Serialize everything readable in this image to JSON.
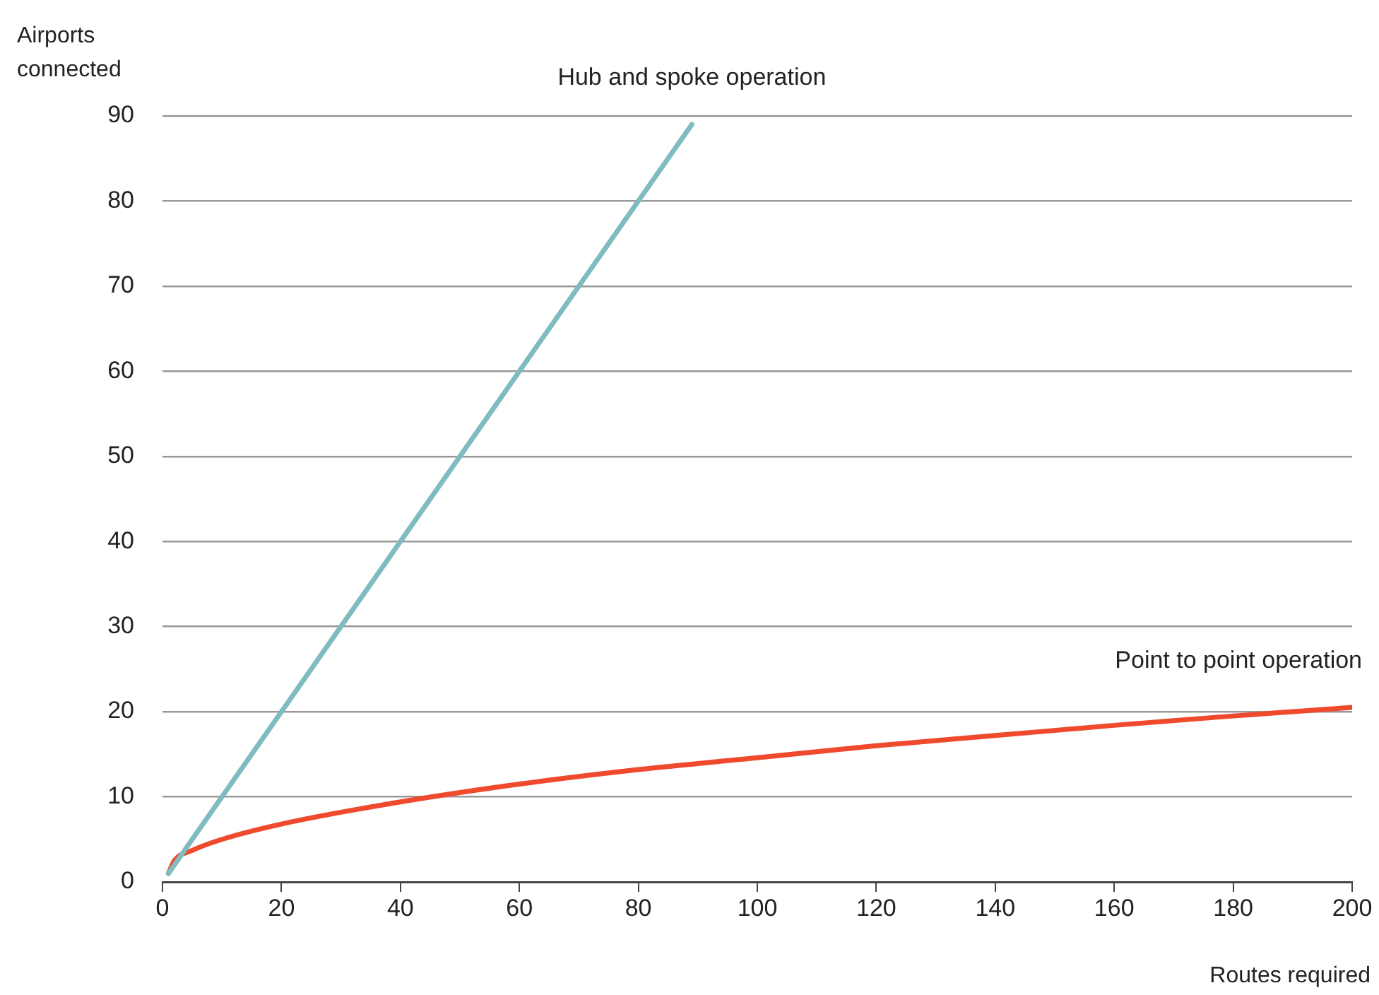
{
  "chart_data": {
    "type": "line",
    "xlabel": "Routes required",
    "ylabel": "Airports connected",
    "xlim": [
      0,
      200
    ],
    "xticks": [
      0,
      20,
      40,
      60,
      80,
      100,
      120,
      140,
      160,
      180,
      200
    ],
    "ylim": [
      0,
      90
    ],
    "yticks": [
      0,
      10,
      20,
      30,
      40,
      50,
      60,
      70,
      80,
      90
    ],
    "grid": "y",
    "legend": false,
    "marker": "none",
    "line_style": "solid",
    "series": [
      {
        "name": "Hub and spoke operation",
        "color": "#7fbcc0",
        "x": [
          1,
          89
        ],
        "values": [
          1,
          89
        ]
      },
      {
        "name": "Point to point operation",
        "color": "#f04a2e",
        "x": [
          1,
          2,
          5,
          10,
          20,
          40,
          60,
          80,
          100,
          120,
          140,
          160,
          180,
          200
        ],
        "values": [
          1,
          2.5,
          3.7,
          5,
          6.8,
          9.4,
          11.5,
          13.2,
          14.6,
          16,
          17.2,
          18.4,
          19.5,
          20.5
        ]
      }
    ]
  }
}
